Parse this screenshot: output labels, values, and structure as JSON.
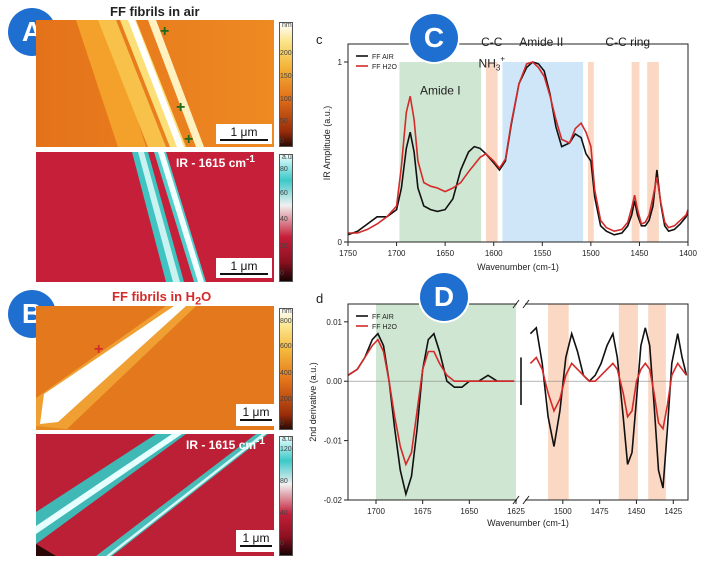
{
  "panel_a": {
    "badge": "A",
    "title": "FF fibrils in air",
    "scale_bar": "1 μm",
    "ir_label": "IR - 1615 cm",
    "ir_label_sup": "-1",
    "afm_colorbar_unit": "nm",
    "afm_colorbar_ticks": [
      "200",
      "150",
      "100",
      "50",
      "0"
    ],
    "ir_colorbar_unit": "a.u.",
    "ir_colorbar_ticks": [
      "80",
      "60",
      "40",
      "20",
      "0"
    ]
  },
  "panel_b": {
    "badge": "B",
    "title_prefix": "FF fibrils in H",
    "title_sub": "2",
    "title_suffix": "O",
    "scale_bar": "1 μm",
    "ir_label": "IR - 1615 cm",
    "ir_label_sup": "-1",
    "afm_colorbar_unit": "nm",
    "afm_colorbar_ticks": [
      "800",
      "600",
      "400",
      "200",
      "0"
    ],
    "ir_colorbar_unit": "a.u.",
    "ir_colorbar_ticks": [
      "120",
      "80",
      "40",
      "0"
    ]
  },
  "panel_c": {
    "badge": "C",
    "letter": "c",
    "annotations": {
      "amide1": "Amide I",
      "cc": "C-C",
      "nh3": "NH",
      "nh3_sub": "3",
      "nh3_sup": "+",
      "amide2": "Amide II",
      "ccring": "C-C ring"
    }
  },
  "panel_d": {
    "badge": "D",
    "letter": "d"
  },
  "colors": {
    "air": "#111111",
    "h2o": "#d42a2a",
    "green_band": "#cfe6d2",
    "blue_band": "#cfe6f8",
    "orange_band": "#fad8c4",
    "badge": "#1f6fd1"
  },
  "chart_data": [
    {
      "type": "line",
      "panel": "c",
      "xlabel": "Wavenumber (cm-1)",
      "ylabel": "IR Amplitude (a.u.)",
      "xlim": [
        1750,
        1400
      ],
      "ylim": [
        0,
        1.1
      ],
      "x_ticks": [
        1750,
        1700,
        1650,
        1600,
        1550,
        1500,
        1450,
        1400
      ],
      "y_ticks": [
        0,
        1
      ],
      "legend": [
        "FF AIR",
        "FF H2O"
      ],
      "legend_position": "top-left",
      "bands": [
        {
          "from": 1697,
          "to": 1613,
          "color": "green"
        },
        {
          "from": 1608,
          "to": 1596,
          "color": "orange"
        },
        {
          "from": 1591,
          "to": 1508,
          "color": "blue"
        },
        {
          "from": 1503,
          "to": 1497,
          "color": "orange"
        },
        {
          "from": 1458,
          "to": 1450,
          "color": "orange"
        },
        {
          "from": 1442,
          "to": 1430,
          "color": "orange"
        }
      ],
      "series": [
        {
          "name": "FF AIR",
          "x": [
            1750,
            1740,
            1730,
            1720,
            1710,
            1700,
            1695,
            1690,
            1686,
            1682,
            1678,
            1672,
            1665,
            1658,
            1650,
            1642,
            1634,
            1626,
            1620,
            1614,
            1608,
            1600,
            1594,
            1588,
            1582,
            1574,
            1566,
            1560,
            1554,
            1548,
            1542,
            1536,
            1530,
            1522,
            1516,
            1510,
            1505,
            1500,
            1496,
            1490,
            1484,
            1476,
            1468,
            1462,
            1458,
            1455,
            1452,
            1448,
            1444,
            1440,
            1436,
            1432,
            1428,
            1424,
            1420,
            1414,
            1408,
            1402,
            1400
          ],
          "y": [
            0.04,
            0.06,
            0.1,
            0.14,
            0.14,
            0.18,
            0.3,
            0.52,
            0.61,
            0.5,
            0.3,
            0.2,
            0.18,
            0.17,
            0.18,
            0.24,
            0.4,
            0.5,
            0.53,
            0.52,
            0.49,
            0.44,
            0.4,
            0.45,
            0.65,
            0.88,
            0.97,
            1.0,
            0.99,
            0.95,
            0.82,
            0.64,
            0.53,
            0.55,
            0.6,
            0.58,
            0.49,
            0.45,
            0.25,
            0.09,
            0.06,
            0.04,
            0.05,
            0.09,
            0.15,
            0.23,
            0.15,
            0.09,
            0.09,
            0.12,
            0.2,
            0.4,
            0.21,
            0.09,
            0.06,
            0.07,
            0.1,
            0.14,
            0.17
          ]
        },
        {
          "name": "FF H2O",
          "x": [
            1750,
            1740,
            1730,
            1720,
            1710,
            1700,
            1695,
            1690,
            1686,
            1682,
            1678,
            1672,
            1665,
            1658,
            1650,
            1642,
            1634,
            1626,
            1620,
            1614,
            1608,
            1600,
            1594,
            1588,
            1582,
            1574,
            1566,
            1560,
            1554,
            1548,
            1542,
            1536,
            1530,
            1522,
            1516,
            1510,
            1505,
            1500,
            1496,
            1490,
            1484,
            1476,
            1468,
            1462,
            1458,
            1455,
            1452,
            1448,
            1444,
            1440,
            1436,
            1432,
            1428,
            1424,
            1420,
            1414,
            1408,
            1402,
            1400
          ],
          "y": [
            0.05,
            0.05,
            0.07,
            0.1,
            0.14,
            0.2,
            0.42,
            0.72,
            0.81,
            0.68,
            0.45,
            0.33,
            0.31,
            0.3,
            0.28,
            0.3,
            0.33,
            0.39,
            0.43,
            0.47,
            0.49,
            0.45,
            0.41,
            0.46,
            0.66,
            0.88,
            0.99,
            1.0,
            0.97,
            0.92,
            0.81,
            0.68,
            0.57,
            0.55,
            0.63,
            0.66,
            0.61,
            0.53,
            0.29,
            0.12,
            0.08,
            0.06,
            0.07,
            0.11,
            0.19,
            0.26,
            0.18,
            0.1,
            0.11,
            0.15,
            0.25,
            0.36,
            0.22,
            0.11,
            0.08,
            0.09,
            0.12,
            0.15,
            0.18
          ]
        }
      ]
    },
    {
      "type": "line",
      "panel": "d",
      "xlabel": "Wavenumber (cm-1)",
      "ylabel": "2nd derivative (a.u.)",
      "xlim_segment1": [
        1715,
        1625
      ],
      "xlim_segment2": [
        1525,
        1415
      ],
      "ylim": [
        -0.02,
        0.013
      ],
      "x_ticks_segment1": [
        1700,
        1675,
        1650,
        1625
      ],
      "x_ticks_segment2": [
        1500,
        1475,
        1450,
        1425
      ],
      "y_ticks": [
        -0.02,
        -0.01,
        0.0,
        0.01
      ],
      "legend": [
        "FF AIR",
        "FF H2O"
      ],
      "legend_position": "top-left",
      "bands": [
        {
          "from": 1700,
          "to": 1625,
          "color": "green"
        },
        {
          "from": 1510,
          "to": 1496,
          "color": "orange"
        },
        {
          "from": 1462,
          "to": 1449,
          "color": "orange"
        },
        {
          "from": 1442,
          "to": 1430,
          "color": "orange"
        }
      ],
      "series": [
        {
          "name": "FF AIR",
          "x": [
            1715,
            1710,
            1706,
            1702,
            1699,
            1696,
            1693,
            1690,
            1687,
            1684,
            1681,
            1678,
            1675,
            1672,
            1669,
            1666,
            1662,
            1658,
            1654,
            1650,
            1645,
            1640,
            1635,
            1630,
            1626,
            1522,
            1518,
            1514,
            1510,
            1506,
            1502,
            1498,
            1494,
            1490,
            1486,
            1482,
            1478,
            1474,
            1470,
            1466,
            1463,
            1459,
            1456,
            1453,
            1450,
            1447,
            1444,
            1441,
            1438,
            1435,
            1432,
            1429,
            1426,
            1422,
            1419,
            1416
          ],
          "y": [
            0.001,
            0.002,
            0.004,
            0.007,
            0.008,
            0.006,
            0.0,
            -0.008,
            -0.015,
            -0.019,
            -0.016,
            -0.008,
            0.002,
            0.007,
            0.008,
            0.005,
            0.0,
            -0.001,
            -0.001,
            0.0,
            0.0,
            0.001,
            0.0,
            0.0,
            0.0,
            0.008,
            0.009,
            0.003,
            -0.006,
            -0.011,
            -0.005,
            0.004,
            0.008,
            0.005,
            0.001,
            0.0,
            0.001,
            0.003,
            0.006,
            0.008,
            0.004,
            -0.006,
            -0.014,
            -0.012,
            -0.003,
            0.006,
            0.009,
            0.006,
            -0.004,
            -0.015,
            -0.018,
            -0.008,
            0.003,
            0.008,
            0.004,
            0.001
          ]
        },
        {
          "name": "FF H2O",
          "x": [
            1715,
            1710,
            1706,
            1702,
            1699,
            1696,
            1693,
            1690,
            1687,
            1684,
            1681,
            1678,
            1675,
            1672,
            1669,
            1666,
            1662,
            1658,
            1654,
            1650,
            1645,
            1640,
            1635,
            1630,
            1626,
            1522,
            1518,
            1514,
            1510,
            1506,
            1502,
            1498,
            1494,
            1490,
            1486,
            1482,
            1478,
            1474,
            1470,
            1466,
            1463,
            1459,
            1456,
            1453,
            1450,
            1447,
            1444,
            1441,
            1438,
            1435,
            1432,
            1429,
            1426,
            1422,
            1419,
            1416
          ],
          "y": [
            0.001,
            0.002,
            0.004,
            0.006,
            0.007,
            0.005,
            0.0,
            -0.006,
            -0.011,
            -0.014,
            -0.012,
            -0.005,
            0.002,
            0.005,
            0.005,
            0.003,
            0.001,
            0.0,
            0.0,
            0.0,
            0.0,
            0.0,
            0.0,
            0.0,
            0.0,
            0.003,
            0.004,
            0.002,
            -0.002,
            -0.005,
            -0.003,
            0.001,
            0.003,
            0.002,
            0.001,
            0.0,
            0.0,
            0.001,
            0.002,
            0.003,
            0.002,
            -0.002,
            -0.006,
            -0.005,
            0.0,
            0.002,
            0.003,
            0.002,
            -0.002,
            -0.007,
            -0.008,
            -0.004,
            0.001,
            0.003,
            0.002,
            0.001
          ]
        }
      ]
    }
  ]
}
